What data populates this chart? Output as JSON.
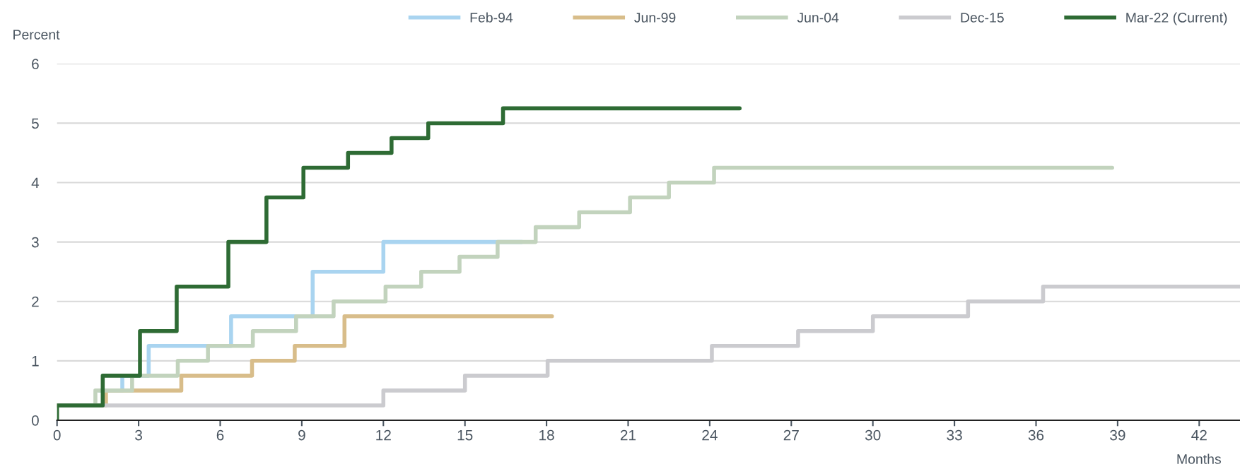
{
  "chart_data": {
    "type": "step",
    "ylabel": "Percent",
    "xlabel": "Months",
    "xlim": [
      0,
      43.5
    ],
    "xticks": [
      0,
      3,
      6,
      9,
      12,
      15,
      18,
      21,
      24,
      27,
      30,
      33,
      36,
      39,
      42
    ],
    "ylim": [
      0,
      6
    ],
    "yticks": [
      0,
      1,
      2,
      3,
      4,
      5,
      6
    ],
    "grid": "y",
    "legend": "top",
    "line_style": "solid",
    "marker": "none",
    "series": [
      {
        "name": "Feb-94",
        "color": "#a9d4f0",
        "x": [
          1.55,
          2.4,
          3.37,
          6.4,
          9.4,
          12.0,
          17.1
        ],
        "values": [
          0.5,
          0.75,
          1.25,
          1.75,
          2.5,
          3.0,
          3.0
        ]
      },
      {
        "name": "Jun-99",
        "color": "#d8bd8a",
        "x": [
          0,
          1.8,
          4.57,
          7.17,
          8.74,
          10.57,
          18.2
        ],
        "values": [
          0.25,
          0.5,
          0.75,
          1.0,
          1.25,
          1.75,
          1.75
        ]
      },
      {
        "name": "Jun-04",
        "color": "#c2d3bd",
        "x": [
          0,
          1.41,
          2.76,
          4.44,
          5.55,
          7.2,
          8.79,
          10.17,
          12.08,
          13.39,
          14.8,
          16.2,
          17.6,
          19.2,
          21.07,
          22.5,
          24.16,
          38.8
        ],
        "values": [
          0.25,
          0.5,
          0.75,
          1.0,
          1.25,
          1.5,
          1.75,
          2.0,
          2.25,
          2.5,
          2.75,
          3.0,
          3.25,
          3.5,
          3.75,
          4.0,
          4.25,
          4.25
        ]
      },
      {
        "name": "Dec-15",
        "color": "#cbcbcf",
        "x": [
          0,
          12.0,
          15.0,
          18.04,
          24.08,
          27.25,
          30.0,
          33.5,
          36.26,
          43.5
        ],
        "values": [
          0.25,
          0.5,
          0.75,
          1.0,
          1.25,
          1.5,
          1.75,
          2.0,
          2.25,
          2.25
        ]
      },
      {
        "name": "Mar-22 (Current)",
        "color": "#2e6b34",
        "x": [
          0,
          0,
          1.68,
          3.05,
          4.4,
          6.3,
          7.7,
          9.06,
          10.7,
          12.3,
          13.65,
          16.4,
          25.1
        ],
        "values": [
          0,
          0.25,
          0.75,
          1.5,
          2.25,
          3.0,
          3.75,
          4.25,
          4.5,
          4.75,
          5.0,
          5.25,
          5.25
        ]
      }
    ]
  }
}
